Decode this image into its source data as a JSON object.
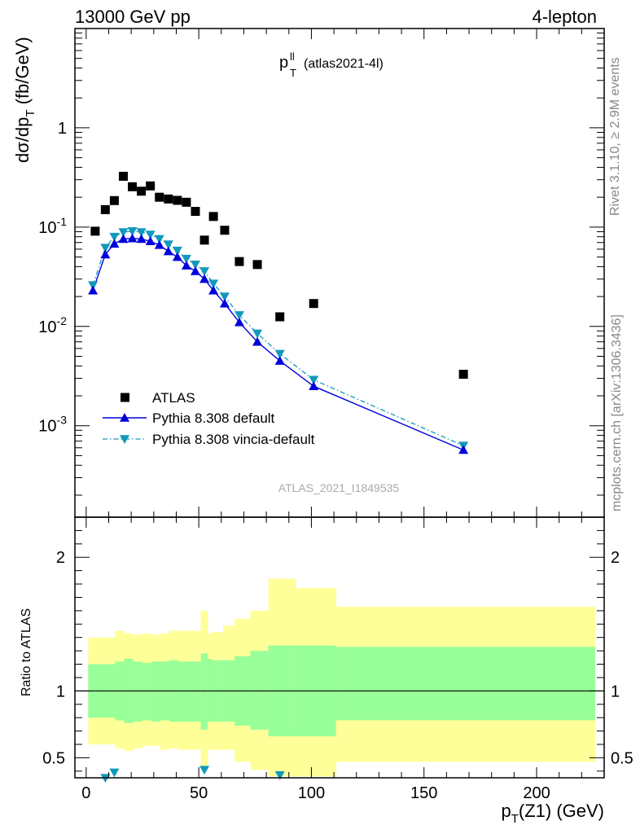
{
  "header": {
    "energy_label": "13000 GeV pp",
    "process_label": "4-lepton"
  },
  "main_plot": {
    "title_main": "p",
    "title_sup": "ll",
    "title_sub": "T",
    "title_tag": "(atlas2021-4l)",
    "ylabel": "dσ/dp",
    "ylabel_sub": "T",
    "ylabel_unit": "(fb/GeV)",
    "watermark": "ATLAS_2021_I1849535"
  },
  "ratio_plot": {
    "ylabel": "Ratio to ATLAS"
  },
  "xaxis": {
    "label_main": "p",
    "label_sub": "T",
    "label_rest": "(Z1) (GeV)"
  },
  "sidebar": {
    "rivet_text": "Rivet 3.1.10, ≥ 2.9M events",
    "mcplots_text": "mcplots.cern.ch [arXiv:1306.3436]"
  },
  "colors": {
    "data": "#000000",
    "pythia_default": "#0000dd",
    "pythia_vincia": "#1199bb",
    "band_inner": "#99ff99",
    "band_outer": "#ffff99"
  },
  "chart_data": {
    "type": "scatter",
    "log_y": true,
    "xlim": [
      -5,
      230
    ],
    "ylim": [
      0.00012,
      10
    ],
    "ratio_ylim": [
      0.35,
      2.3
    ],
    "x_ticks": [
      "0",
      "50",
      "100",
      "150",
      "200"
    ],
    "y_ticks": [
      "10^-3",
      "10^-2",
      "10^-1",
      "1"
    ],
    "ratio_ticks": [
      "0.5",
      "1",
      "2"
    ],
    "legend_position": "lower-left",
    "series": [
      {
        "name": "ATLAS",
        "style": "markers",
        "x": [
          4,
          8.5,
          12.5,
          16.5,
          20.5,
          24.5,
          28.5,
          32.5,
          36.5,
          40.5,
          44.5,
          48.5,
          52.5,
          56.5,
          61.5,
          68,
          76,
          86,
          101,
          167.5
        ],
        "y": [
          0.091,
          0.15,
          0.185,
          0.325,
          0.255,
          0.23,
          0.26,
          0.2,
          0.192,
          0.186,
          0.178,
          0.144,
          0.074,
          0.128,
          0.093,
          0.045,
          0.042,
          0.0125,
          0.017,
          0.0033
        ]
      },
      {
        "name": "Pythia 8.308 default",
        "style": "line+triangle-up",
        "x": [
          3,
          8.5,
          12.5,
          16.5,
          20.5,
          24.5,
          28.5,
          32.5,
          36.5,
          40.5,
          44.5,
          48.5,
          52.5,
          56.5,
          61.5,
          68,
          76,
          86,
          101,
          167.5
        ],
        "y": [
          0.023,
          0.053,
          0.068,
          0.076,
          0.077,
          0.076,
          0.072,
          0.066,
          0.057,
          0.05,
          0.041,
          0.036,
          0.03,
          0.023,
          0.017,
          0.011,
          0.007,
          0.0045,
          0.0025,
          0.00057
        ]
      },
      {
        "name": "Pythia 8.308 vincia-default",
        "style": "dashdot+triangle-down",
        "x": [
          3,
          8.5,
          12.5,
          16.5,
          20.5,
          24.5,
          28.5,
          32.5,
          36.5,
          40.5,
          44.5,
          48.5,
          52.5,
          56.5,
          61.5,
          68,
          76,
          86,
          101,
          167.5
        ],
        "y": [
          0.026,
          0.062,
          0.08,
          0.089,
          0.091,
          0.089,
          0.084,
          0.076,
          0.067,
          0.058,
          0.048,
          0.042,
          0.036,
          0.027,
          0.02,
          0.013,
          0.0085,
          0.0053,
          0.0029,
          0.00063
        ]
      }
    ],
    "ratio_band": {
      "edges": [
        0,
        8,
        12,
        16,
        20,
        24,
        28,
        32,
        36,
        40,
        44,
        48,
        50,
        53,
        55,
        60,
        65,
        72,
        80,
        92,
        110,
        225
      ],
      "inner_lo": [
        0.8,
        0.8,
        0.78,
        0.76,
        0.77,
        0.78,
        0.77,
        0.78,
        0.77,
        0.77,
        0.77,
        0.77,
        0.71,
        0.77,
        0.77,
        0.77,
        0.74,
        0.71,
        0.66,
        0.66,
        0.78
      ],
      "inner_hi": [
        1.2,
        1.2,
        1.22,
        1.24,
        1.22,
        1.21,
        1.22,
        1.22,
        1.23,
        1.22,
        1.22,
        1.22,
        1.28,
        1.24,
        1.23,
        1.23,
        1.26,
        1.3,
        1.34,
        1.34,
        1.33
      ],
      "outer_lo": [
        0.6,
        0.6,
        0.57,
        0.55,
        0.57,
        0.59,
        0.59,
        0.56,
        0.57,
        0.56,
        0.56,
        0.56,
        0.42,
        0.56,
        0.56,
        0.56,
        0.47,
        0.41,
        0.36,
        0.36,
        0.47
      ],
      "outer_hi": [
        1.4,
        1.4,
        1.45,
        1.43,
        1.42,
        1.43,
        1.42,
        1.43,
        1.45,
        1.45,
        1.45,
        1.45,
        1.6,
        1.43,
        1.44,
        1.49,
        1.54,
        1.6,
        1.84,
        1.77,
        1.63
      ]
    },
    "ratio_markers": [
      {
        "series": "Pythia 8.308 vincia-default",
        "x": 8.5,
        "y": 0.35
      },
      {
        "series": "Pythia 8.308 vincia-default",
        "x": 12.5,
        "y": 0.39
      },
      {
        "series": "Pythia 8.308 vincia-default",
        "x": 52.5,
        "y": 0.41
      },
      {
        "series": "Pythia 8.308 vincia-default",
        "x": 86,
        "y": 0.37
      }
    ]
  }
}
